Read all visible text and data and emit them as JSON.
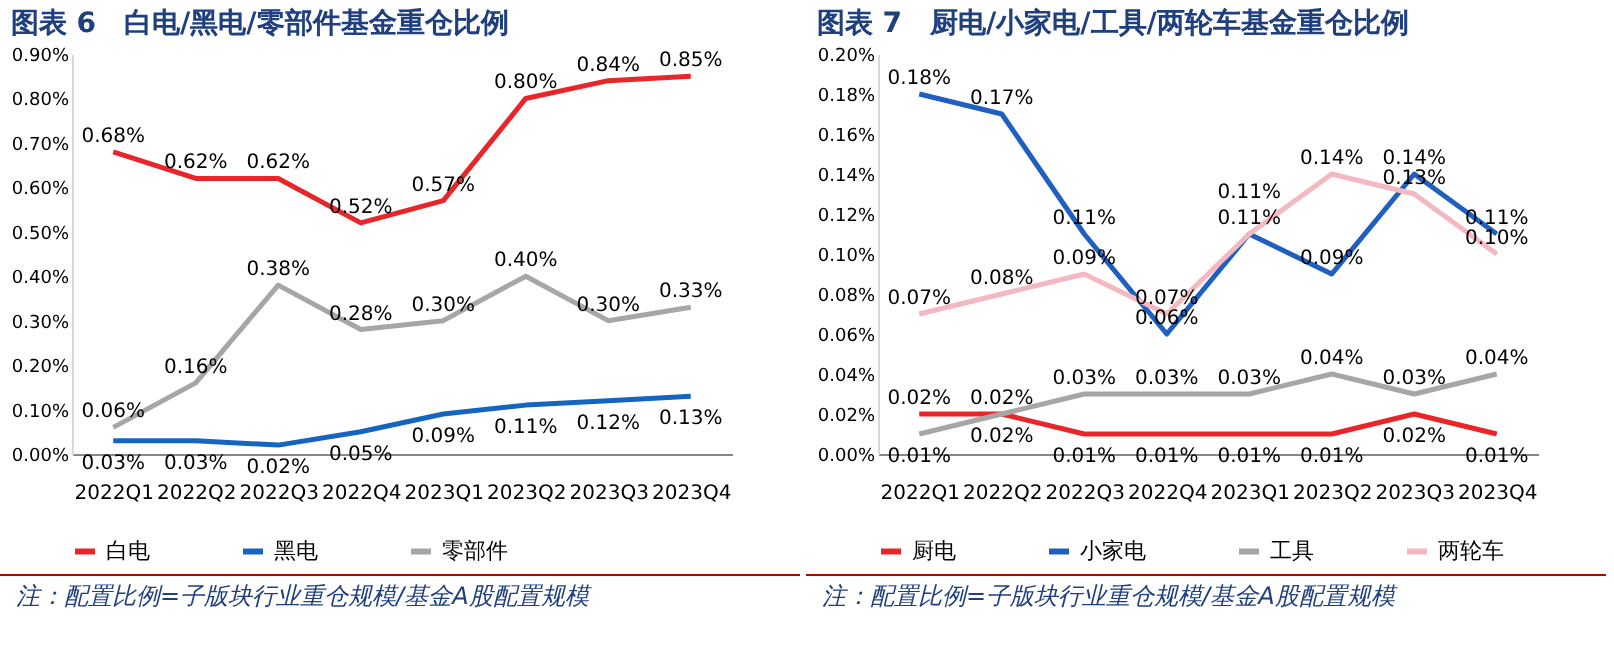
{
  "chart_data": [
    {
      "type": "line",
      "title": "图表 6　白电/黑电/零部件基金重仓比例",
      "categories": [
        "2022Q1",
        "2022Q2",
        "2022Q3",
        "2022Q4",
        "2023Q1",
        "2023Q2",
        "2023Q3",
        "2023Q4"
      ],
      "series": [
        {
          "name": "白电",
          "color": "#e8262a",
          "values": [
            0.68,
            0.62,
            0.62,
            0.52,
            0.57,
            0.8,
            0.84,
            0.85
          ],
          "value_labels": [
            "0.68%",
            "0.62%",
            "0.62%",
            "0.52%",
            "0.57%",
            "0.80%",
            "0.84%",
            "0.85%"
          ]
        },
        {
          "name": "黑电",
          "color": "#1565c0",
          "values": [
            0.03,
            0.03,
            0.02,
            0.05,
            0.09,
            0.11,
            0.12,
            0.13
          ],
          "value_labels": [
            "0.03%",
            "0.03%",
            "0.02%",
            "0.05%",
            "0.09%",
            "0.11%",
            "0.12%",
            "0.13%"
          ]
        },
        {
          "name": "零部件",
          "color": "#a6a6a6",
          "values": [
            0.06,
            0.16,
            0.38,
            0.28,
            0.3,
            0.4,
            0.3,
            0.33
          ],
          "value_labels": [
            "0.06%",
            "0.16%",
            "0.38%",
            "0.28%",
            "0.30%",
            "0.40%",
            "0.30%",
            "0.33%"
          ]
        }
      ],
      "ylim": [
        0,
        0.9
      ],
      "yticks": [
        {
          "value": 0,
          "label": "0.00%"
        },
        {
          "value": 0.1,
          "label": "0.10%"
        },
        {
          "value": 0.2,
          "label": "0.20%"
        },
        {
          "value": 0.3,
          "label": "0.30%"
        },
        {
          "value": 0.4,
          "label": "0.40%"
        },
        {
          "value": 0.5,
          "label": "0.50%"
        },
        {
          "value": 0.6,
          "label": "0.60%"
        },
        {
          "value": 0.7,
          "label": "0.70%"
        },
        {
          "value": 0.8,
          "label": "0.80%"
        },
        {
          "value": 0.9,
          "label": "0.90%"
        }
      ],
      "legend": "bottom",
      "marker": "none",
      "annotations": [
        "注：配置比例=子版块行业重仓规模/基金A股配置规模"
      ]
    },
    {
      "type": "line",
      "title": "图表 7　厨电/小家电/工具/两轮车基金重仓比例",
      "categories": [
        "2022Q1",
        "2022Q2",
        "2022Q3",
        "2022Q4",
        "2023Q1",
        "2023Q2",
        "2023Q3",
        "2023Q4"
      ],
      "series": [
        {
          "name": "厨电",
          "color": "#e8262a",
          "values": [
            0.02,
            0.02,
            0.01,
            0.01,
            0.01,
            0.01,
            0.02,
            0.01
          ],
          "value_labels": [
            "0.02%",
            "0.02%",
            "0.01%",
            "0.01%",
            "0.01%",
            "0.01%",
            "0.02%",
            "0.01%"
          ]
        },
        {
          "name": "小家电",
          "color": "#1f5fbf",
          "values": [
            0.18,
            0.17,
            0.11,
            0.06,
            0.11,
            0.09,
            0.14,
            0.11
          ],
          "value_labels": [
            "0.18%",
            "0.17%",
            "0.11%",
            "0.06%",
            "0.11%",
            "0.09%",
            "0.14%",
            "0.11%"
          ]
        },
        {
          "name": "工具",
          "color": "#a6a6a6",
          "values": [
            0.01,
            0.02,
            0.03,
            0.03,
            0.03,
            0.04,
            0.03,
            0.04
          ],
          "value_labels": [
            "0.01%",
            "0.02%",
            "0.03%",
            "0.03%",
            "0.03%",
            "0.04%",
            "0.03%",
            "0.04%"
          ]
        },
        {
          "name": "两轮车",
          "color": "#f4b8c0",
          "values": [
            0.07,
            0.08,
            0.09,
            0.07,
            0.11,
            0.14,
            0.13,
            0.1
          ],
          "value_labels": [
            "0.07%",
            "0.08%",
            "0.09%",
            "0.07%",
            "0.11%",
            "0.14%",
            "0.13%",
            "0.10%"
          ]
        }
      ],
      "ylim": [
        0,
        0.2
      ],
      "yticks": [
        {
          "value": 0,
          "label": "0.00%"
        },
        {
          "value": 0.02,
          "label": "0.02%"
        },
        {
          "value": 0.04,
          "label": "0.04%"
        },
        {
          "value": 0.06,
          "label": "0.06%"
        },
        {
          "value": 0.08,
          "label": "0.08%"
        },
        {
          "value": 0.1,
          "label": "0.10%"
        },
        {
          "value": 0.12,
          "label": "0.12%"
        },
        {
          "value": 0.14,
          "label": "0.14%"
        },
        {
          "value": 0.16,
          "label": "0.16%"
        },
        {
          "value": 0.18,
          "label": "0.18%"
        },
        {
          "value": 0.2,
          "label": "0.20%"
        }
      ],
      "legend": "bottom",
      "marker": "none",
      "annotations": [
        "注：配置比例=子版块行业重仓规模/基金A股配置规模"
      ]
    }
  ]
}
